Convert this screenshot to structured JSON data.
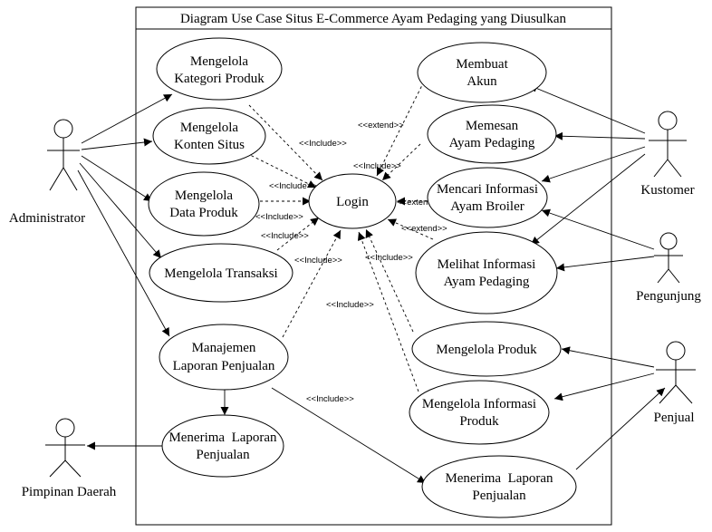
{
  "system": {
    "title": "Diagram Use Case Situs E-Commerce Ayam Pedaging yang Diusulkan"
  },
  "actors": {
    "administrator": "Administrator",
    "kustomer": "Kustomer",
    "pengunjung": "Pengunjung",
    "penjual": "Penjual",
    "pimpinan": "Pimpinan Daerah"
  },
  "use_cases": {
    "kategori": [
      "Mengelola",
      "Kategori Produk"
    ],
    "konten": [
      "Mengelola",
      "Konten Situs"
    ],
    "data_produk": [
      "Mengelola",
      "Data Produk"
    ],
    "transaksi": [
      "Mengelola Transaksi"
    ],
    "manajemen": [
      "Manajemen",
      "Laporan Penjualan"
    ],
    "menerima_admin": [
      "Menerima  Laporan",
      "Penjualan"
    ],
    "login": [
      "Login"
    ],
    "akun": [
      "Membuat",
      "Akun"
    ],
    "memesan": [
      "Memesan",
      "Ayam Pedaging"
    ],
    "mencari": [
      "Mencari Informasi",
      "Ayam Broiler"
    ],
    "melihat": [
      "Melihat Informasi",
      "Ayam Pedaging"
    ],
    "produk": [
      "Mengelola Produk"
    ],
    "info_produk": [
      "Mengelola Informasi",
      "Produk"
    ],
    "menerima_penjual": [
      "Menerima  Laporan",
      "Penjualan"
    ]
  },
  "relations": {
    "include": "<<Include>>",
    "extend": "<<extend>>"
  }
}
